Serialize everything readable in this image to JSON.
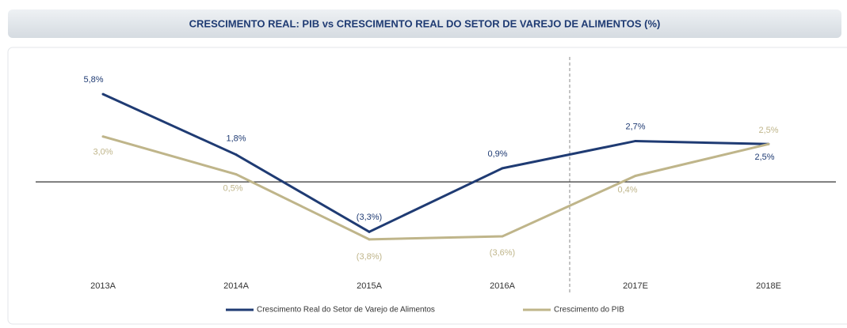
{
  "chart_data": {
    "type": "line",
    "title": "CRESCIMENTO REAL: PIB vs CRESCIMENTO REAL DO SETOR DE VAREJO DE ALIMENTOS (%)",
    "categories": [
      "2013A",
      "2014A",
      "2015A",
      "2016A",
      "2017E",
      "2018E"
    ],
    "series": [
      {
        "name": "Crescimento Real do Setor de Varejo de Alimentos",
        "color": "#1f3b73",
        "values": [
          5.8,
          1.8,
          -3.3,
          0.9,
          2.7,
          2.5
        ],
        "value_labels": [
          "5,8%",
          "1,8%",
          "(3,3%)",
          "0,9%",
          "2,7%",
          "2,5%"
        ]
      },
      {
        "name": "Crescimento do PIB",
        "color": "#bfb58a",
        "values": [
          3.0,
          0.5,
          -3.8,
          -3.6,
          0.4,
          2.5
        ],
        "value_labels": [
          "3,0%",
          "0,5%",
          "(3,8%)",
          "(3,6%)",
          "0,4%",
          "2,5%"
        ]
      }
    ],
    "ylim": [
      -6,
      8
    ]
  }
}
